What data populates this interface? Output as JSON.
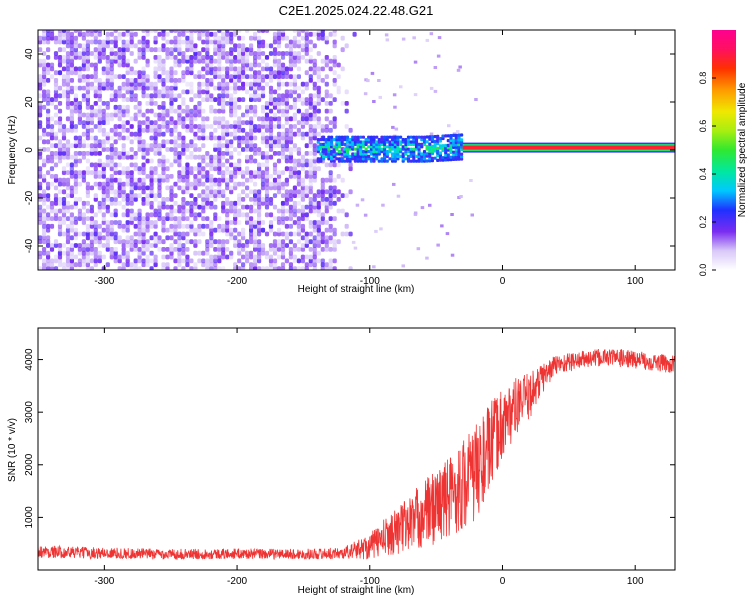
{
  "title": "C2E1.2025.024.22.48.G21",
  "chart_data": [
    {
      "type": "heatmap",
      "xlabel": "Height of straight line (km)",
      "ylabel": "Frequency (Hz)",
      "xlim": [
        -350,
        130
      ],
      "ylim": [
        -50,
        50
      ],
      "xticks": [
        -300,
        -200,
        -100,
        0,
        100
      ],
      "yticks": [
        -40,
        -20,
        0,
        20,
        40
      ],
      "colorbar": {
        "label": "Normalized spectral amplitude",
        "range": [
          0.0,
          1.0
        ],
        "ticks": [
          0.0,
          0.2,
          0.4,
          0.6,
          0.8
        ],
        "tick_labels": [
          "0.0",
          "0.2",
          "0.4",
          "0.6",
          "0.8"
        ],
        "colormap": "white-purple-blue-cyan-green-yellow-orange-red-magenta"
      },
      "features": [
        {
          "x_range": [
            -350,
            -112
          ],
          "freq_range": [
            -50,
            50
          ],
          "amplitude_range": [
            0.05,
            0.2
          ]
        },
        {
          "x_range": [
            -140,
            -30
          ],
          "freq_range": [
            -5,
            5
          ],
          "amplitude_range": [
            0.2,
            0.5
          ]
        },
        {
          "x_range": [
            -30,
            130
          ],
          "freq": 1,
          "amplitude": 0.9
        }
      ]
    },
    {
      "type": "line",
      "xlabel": "Height of straight line (km)",
      "ylabel": "SNR (10 * v/v)",
      "xlim": [
        -350,
        130
      ],
      "ylim": [
        0,
        4600
      ],
      "xticks": [
        -300,
        -200,
        -100,
        0,
        100
      ],
      "yticks": [
        1000,
        2000,
        3000,
        4000
      ],
      "color": "#ee3333",
      "envelope": {
        "x": [
          -350,
          -300,
          -250,
          -200,
          -150,
          -120,
          -100,
          -80,
          -60,
          -40,
          -20,
          -10,
          0,
          10,
          20,
          30,
          40,
          60,
          80,
          100,
          130
        ],
        "mean": [
          350,
          320,
          300,
          310,
          300,
          320,
          450,
          750,
          1050,
          1400,
          1850,
          2300,
          2800,
          3100,
          3300,
          3650,
          3900,
          4000,
          4050,
          4000,
          3900
        ],
        "spread": [
          120,
          110,
          100,
          100,
          100,
          110,
          250,
          450,
          650,
          800,
          950,
          850,
          700,
          550,
          450,
          300,
          200,
          170,
          170,
          170,
          170
        ]
      }
    }
  ]
}
